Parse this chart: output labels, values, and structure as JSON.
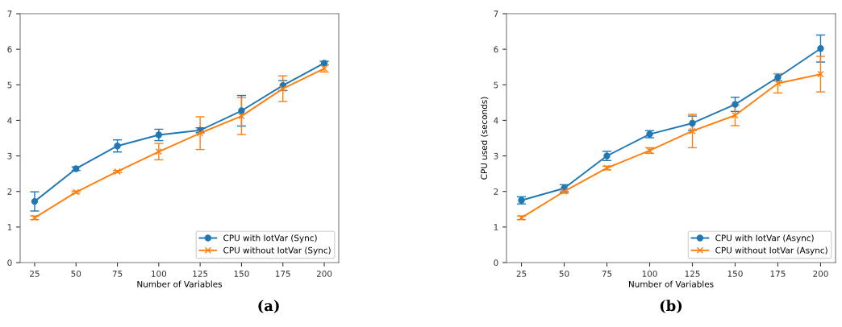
{
  "chart_data": [
    {
      "type": "line",
      "xlabel": "Number of Variables",
      "x": [
        25,
        50,
        75,
        100,
        125,
        150,
        175,
        200
      ],
      "xlim": [
        16.25,
        208.75
      ],
      "xticks": [
        25,
        50,
        75,
        100,
        125,
        150,
        175,
        200
      ],
      "ylim": [
        0,
        7
      ],
      "yticks": [
        0,
        1,
        2,
        3,
        4,
        5,
        6,
        7
      ],
      "legend": "bottom right",
      "grid": false,
      "annotations": [
        "(a)"
      ],
      "series": [
        {
          "name": "CPU with IotVar (Sync)",
          "color": "#1f77b4",
          "marker": "circle",
          "values": [
            1.72,
            2.64,
            3.28,
            3.59,
            3.72,
            4.27,
            4.98,
            5.61
          ],
          "errors": [
            0.27,
            0.05,
            0.17,
            0.16,
            0.07,
            0.43,
            0.14,
            0.05
          ]
        },
        {
          "name": "CPU without IotVar (Sync)",
          "color": "#ff7f0e",
          "marker": "cross",
          "values": [
            1.26,
            1.98,
            2.56,
            3.12,
            3.64,
            4.12,
            4.89,
            5.46
          ],
          "errors": [
            0.05,
            0.03,
            0.03,
            0.23,
            0.46,
            0.52,
            0.36,
            0.1
          ]
        }
      ]
    },
    {
      "type": "line",
      "xlabel": "Number of Variables",
      "ylabel": "CPU used (seconds)",
      "x": [
        25,
        50,
        75,
        100,
        125,
        150,
        175,
        200
      ],
      "xlim": [
        16.25,
        208.75
      ],
      "xticks": [
        25,
        50,
        75,
        100,
        125,
        150,
        175,
        200
      ],
      "ylim": [
        0,
        7
      ],
      "yticks": [
        0,
        1,
        2,
        3,
        4,
        5,
        6,
        7
      ],
      "legend": "bottom right",
      "grid": false,
      "annotations": [
        "(b)"
      ],
      "series": [
        {
          "name": "CPU with IotVar (Async)",
          "color": "#1f77b4",
          "marker": "circle",
          "values": [
            1.75,
            2.09,
            3.0,
            3.61,
            3.92,
            4.45,
            5.21,
            6.02
          ],
          "errors": [
            0.1,
            0.1,
            0.13,
            0.1,
            0.2,
            0.2,
            0.1,
            0.38
          ]
        },
        {
          "name": "CPU without IotVar (Async)",
          "color": "#ff7f0e",
          "marker": "cross",
          "values": [
            1.26,
            2.0,
            2.66,
            3.15,
            3.7,
            4.14,
            5.04,
            5.3
          ],
          "errors": [
            0.05,
            0.05,
            0.05,
            0.08,
            0.47,
            0.29,
            0.27,
            0.5
          ]
        }
      ]
    }
  ]
}
